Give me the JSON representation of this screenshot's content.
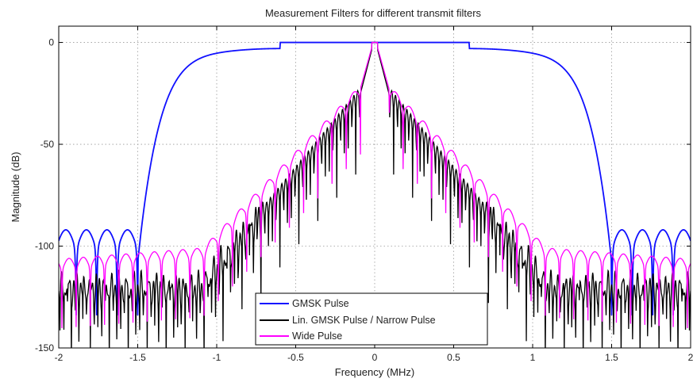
{
  "chart_data": {
    "type": "line",
    "title": "Measurement Filters for different transmit filters",
    "xlabel": "Frequency (MHz)",
    "ylabel": "Magnitude (dB)",
    "xlim": [
      -2,
      2
    ],
    "ylim": [
      -150,
      8
    ],
    "x_ticks": [
      -2,
      -1.5,
      -1,
      -0.5,
      0,
      0.5,
      1,
      1.5,
      2
    ],
    "x_tick_labels": [
      "-2",
      "-1.5",
      "-1",
      "-0.5",
      "0",
      "0.5",
      "1",
      "1.5",
      "2"
    ],
    "y_ticks": [
      0,
      -50,
      -100,
      -150
    ],
    "y_tick_labels": [
      "0",
      "-50",
      "-100",
      "-150"
    ],
    "grid": true,
    "legend_position": "bottom-center",
    "series": [
      {
        "name": "GMSK Pulse",
        "color": "#1010ff",
        "description_points": {
          "passband_level_db": 0,
          "passband_edge_mhz": 0.6,
          "stopband_edge_mhz": 1.5,
          "stopband_level_db": -95
        }
      },
      {
        "name": "Lin. GMSK Pulse / Narrow Pulse",
        "color": "#000000",
        "description_points": {
          "peak_db": 0,
          "main_lobe_halfwidth_mhz": 0.1,
          "floor_level_db": -125
        }
      },
      {
        "name": "Wide Pulse",
        "color": "#ff00ff",
        "description_points": {
          "peak_db": 0,
          "main_lobe_halfwidth_mhz": 0.1,
          "floor_level_db": -110
        }
      }
    ]
  }
}
